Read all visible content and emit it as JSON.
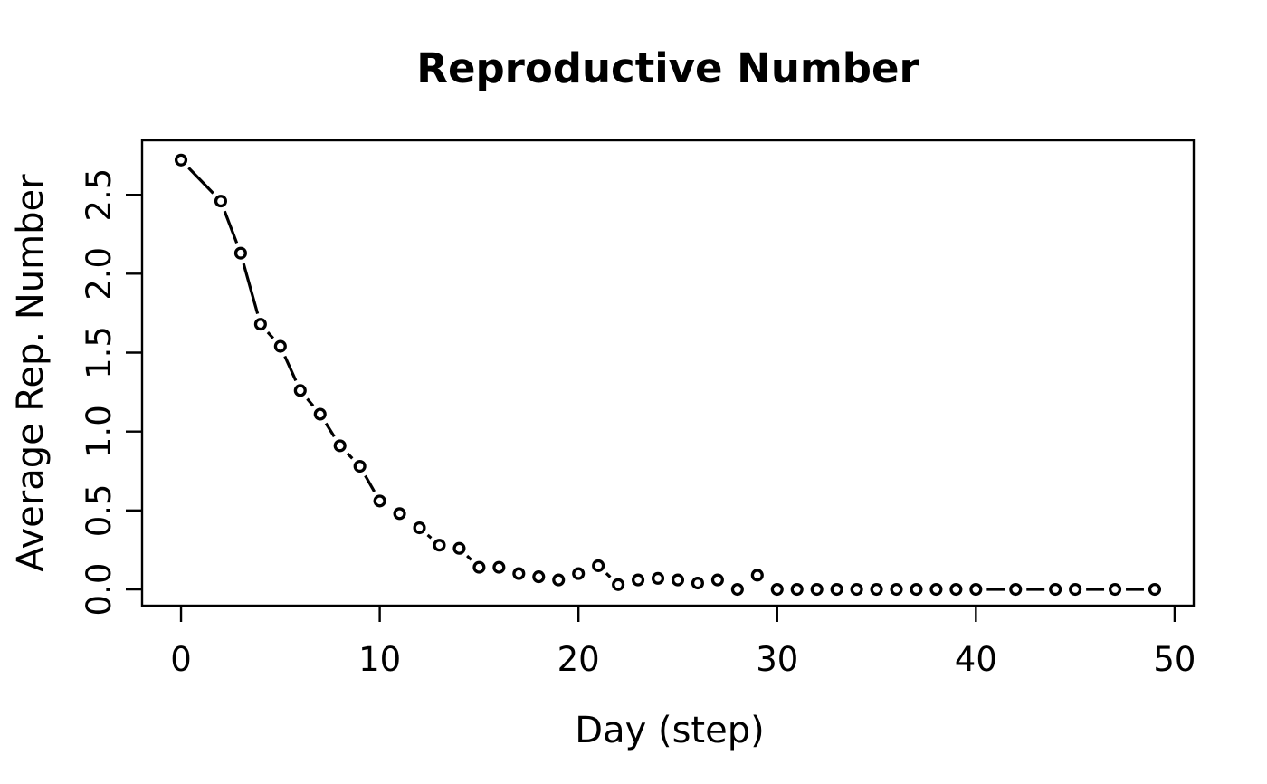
{
  "figure": {
    "background": "#ffffff",
    "foreground": "#000000"
  },
  "chart_data": {
    "type": "line",
    "title": "Reproductive Number",
    "xlabel": "Day (step)",
    "ylabel": "Average Rep. Number",
    "marker": "open-circle",
    "line_style": "dashed",
    "line_color": "#000000",
    "marker_color": "#000000",
    "grid": false,
    "legend_position": "none",
    "x": [
      0,
      2,
      3,
      4,
      5,
      6,
      7,
      8,
      9,
      10,
      11,
      12,
      13,
      14,
      15,
      16,
      17,
      18,
      19,
      20,
      21,
      22,
      23,
      24,
      25,
      26,
      27,
      28,
      29,
      30,
      31,
      32,
      33,
      34,
      35,
      36,
      37,
      38,
      39,
      40,
      42,
      44,
      45,
      47,
      49
    ],
    "values": [
      2.72,
      2.46,
      2.13,
      1.68,
      1.54,
      1.26,
      1.11,
      0.91,
      0.78,
      0.56,
      0.48,
      0.39,
      0.28,
      0.26,
      0.14,
      0.14,
      0.1,
      0.08,
      0.06,
      0.1,
      0.15,
      0.03,
      0.06,
      0.07,
      0.06,
      0.04,
      0.06,
      0.0,
      0.09,
      0.0,
      0.0,
      0.0,
      0.0,
      0.0,
      0.0,
      0.0,
      0.0,
      0.0,
      0.0,
      0.0,
      0.0,
      0.0,
      0.0,
      0.0,
      0.0
    ],
    "xtick_labels": [
      "0",
      "10",
      "20",
      "30",
      "40",
      "50"
    ],
    "xtick_values": [
      0,
      10,
      20,
      30,
      40,
      50
    ],
    "ytick_labels": [
      "0.0",
      "0.5",
      "1.0",
      "1.5",
      "2.0",
      "2.5"
    ],
    "ytick_values": [
      0,
      0.5,
      1.0,
      1.5,
      2.0,
      2.5
    ],
    "xlim": [
      -1.96,
      50.96
    ],
    "ylim": [
      -0.103,
      2.845
    ]
  }
}
